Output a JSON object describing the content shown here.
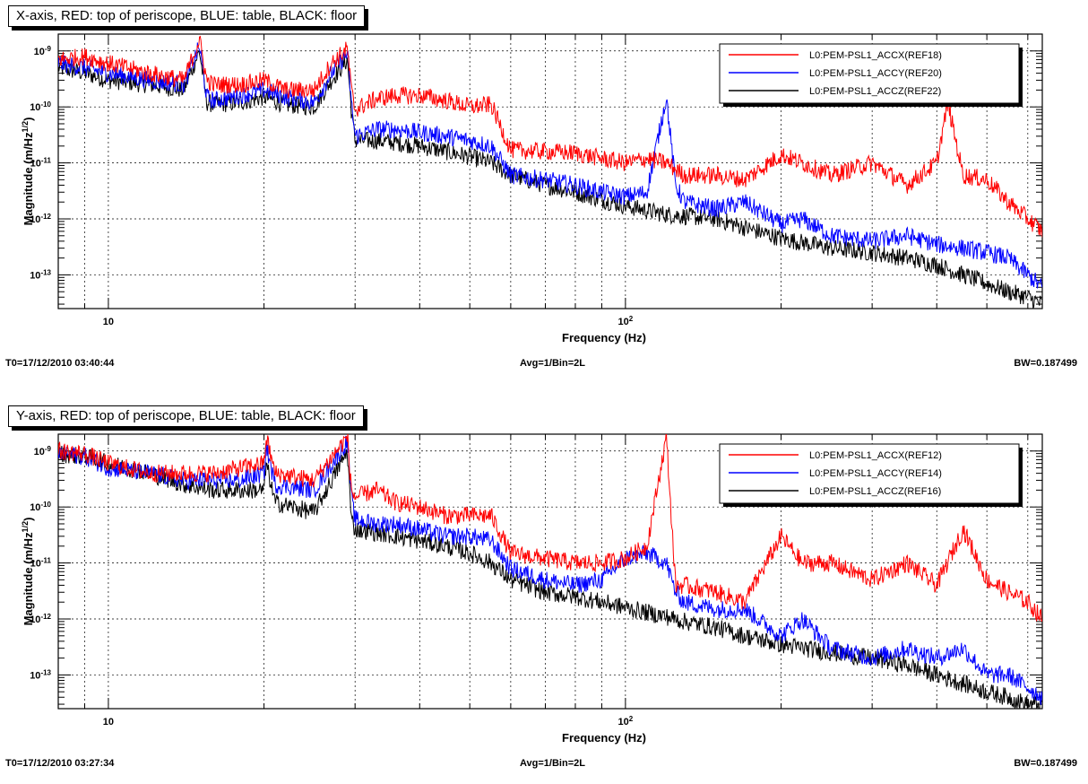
{
  "chart_data": [
    {
      "type": "line",
      "title": "X-axis, RED: top of periscope, BLUE: table, BLACK: floor",
      "xlabel": "Frequency (Hz)",
      "ylabel": "Magnitude (m/Hz^(1/2))",
      "xscale": "log",
      "yscale": "log",
      "xlim": [
        8,
        640
      ],
      "ylim": [
        2.5e-14,
        2e-09
      ],
      "grid": true,
      "legend_position": "top-right",
      "xticks": [
        {
          "value": 10,
          "label": "10"
        },
        {
          "value": 100,
          "label": "10^2"
        }
      ],
      "yticks": [
        {
          "value": 1e-09,
          "label": "10^-9"
        },
        {
          "value": 1e-10,
          "label": "10^-10"
        },
        {
          "value": 1e-11,
          "label": "10^-11"
        },
        {
          "value": 1e-12,
          "label": "10^-12"
        },
        {
          "value": 1e-13,
          "label": "10^-13"
        }
      ],
      "footer": {
        "left": "T0=17/12/2010 03:40:44",
        "center": "Avg=1/Bin=2L",
        "right": "BW=0.187499"
      },
      "series": [
        {
          "name": "L0:PEM-PSL1_ACCX(REF18)",
          "color": "#ff0000",
          "x": [
            8,
            9,
            10,
            12,
            14,
            15,
            15.5,
            16,
            18,
            20,
            22,
            25,
            27,
            29,
            29.5,
            30,
            33,
            36,
            40,
            45,
            50,
            55,
            60,
            70,
            80,
            90,
            100,
            110,
            120,
            130,
            150,
            170,
            200,
            220,
            250,
            300,
            350,
            400,
            420,
            450,
            500,
            550,
            600,
            640
          ],
          "y": [
            7e-10,
            8e-10,
            6e-10,
            4e-10,
            3e-10,
            1.6e-09,
            3e-10,
            2.5e-10,
            2.5e-10,
            3e-10,
            2e-10,
            2e-10,
            6e-10,
            1.1e-09,
            2e-10,
            9e-11,
            1.4e-10,
            1.6e-10,
            1.6e-10,
            1.3e-10,
            1e-10,
            1.1e-10,
            1.7e-11,
            1.6e-11,
            1.5e-11,
            1.2e-11,
            1e-11,
            1.2e-11,
            1e-11,
            6e-12,
            6e-12,
            5e-12,
            1.4e-11,
            1e-11,
            6e-12,
            1e-11,
            4e-12,
            1e-11,
            1.2e-10,
            6e-12,
            5e-12,
            2e-12,
            1e-12,
            6e-13
          ]
        },
        {
          "name": "L0:PEM-PSL1_ACCY(REF20)",
          "color": "#0000ff",
          "x": [
            8,
            9,
            10,
            12,
            14,
            15,
            15.5,
            16,
            18,
            20,
            22,
            25,
            27,
            29,
            29.5,
            30,
            33,
            36,
            40,
            45,
            50,
            55,
            60,
            70,
            80,
            90,
            100,
            110,
            120,
            125,
            130,
            150,
            170,
            200,
            220,
            250,
            300,
            350,
            400,
            450,
            500,
            550,
            600,
            640
          ],
          "y": [
            6e-10,
            5e-10,
            4e-10,
            3e-10,
            2.5e-10,
            1.2e-09,
            1.5e-10,
            1.3e-10,
            1.6e-10,
            2e-10,
            1.5e-10,
            1.2e-10,
            4e-10,
            9e-10,
            1.2e-10,
            3e-11,
            4e-11,
            4e-11,
            3.5e-11,
            3e-11,
            2.5e-11,
            2e-11,
            6e-12,
            5e-12,
            4e-12,
            3e-12,
            2.5e-12,
            3e-12,
            1.5e-10,
            4e-12,
            2e-12,
            1.5e-12,
            2e-12,
            8e-13,
            1e-12,
            5e-13,
            4e-13,
            5e-13,
            3.5e-13,
            3e-13,
            2.5e-13,
            2e-13,
            1e-13,
            6e-14
          ]
        },
        {
          "name": "L0:PEM-PSL1_ACCZ(REF22)",
          "color": "#000000",
          "x": [
            8,
            9,
            10,
            12,
            14,
            15,
            15.5,
            16,
            18,
            20,
            22,
            25,
            27,
            29,
            29.5,
            30,
            33,
            36,
            40,
            45,
            50,
            55,
            60,
            70,
            80,
            90,
            100,
            120,
            150,
            170,
            200,
            250,
            300,
            350,
            400,
            450,
            500,
            550,
            600,
            640
          ],
          "y": [
            5e-10,
            4e-10,
            3e-10,
            2.5e-10,
            2e-10,
            1e-09,
            1.2e-10,
            1.1e-10,
            1.2e-10,
            1.5e-10,
            1.1e-10,
            1e-10,
            3e-10,
            7e-10,
            9e-11,
            2.5e-11,
            2.5e-11,
            2.3e-11,
            2e-11,
            1.6e-11,
            1.3e-11,
            1e-11,
            6e-12,
            4e-12,
            3e-12,
            2.2e-12,
            1.7e-12,
            1.2e-12,
            1e-12,
            7e-13,
            4.5e-13,
            3e-13,
            2.5e-13,
            2e-13,
            1.5e-13,
            1e-13,
            7e-14,
            5e-14,
            4e-14,
            3e-14
          ]
        }
      ]
    },
    {
      "type": "line",
      "title": "Y-axis, RED: top of periscope, BLUE: table, BLACK: floor",
      "xlabel": "Frequency (Hz)",
      "ylabel": "Magnitude (m/Hz^(1/2))",
      "xscale": "log",
      "yscale": "log",
      "xlim": [
        8,
        640
      ],
      "ylim": [
        2.5e-14,
        2e-09
      ],
      "grid": true,
      "legend_position": "top-right",
      "xticks": [
        {
          "value": 10,
          "label": "10"
        },
        {
          "value": 100,
          "label": "10^2"
        }
      ],
      "yticks": [
        {
          "value": 1e-09,
          "label": "10^-9"
        },
        {
          "value": 1e-10,
          "label": "10^-10"
        },
        {
          "value": 1e-11,
          "label": "10^-11"
        },
        {
          "value": 1e-12,
          "label": "10^-12"
        },
        {
          "value": 1e-13,
          "label": "10^-13"
        }
      ],
      "footer": {
        "left": "T0=17/12/2010 03:27:34",
        "center": "Avg=1/Bin=2L",
        "right": "BW=0.187499"
      },
      "series": [
        {
          "name": "L0:PEM-PSL1_ACCX(REF12)",
          "color": "#ff0000",
          "x": [
            8,
            9,
            10,
            12,
            14,
            16,
            18,
            20,
            20.2,
            21,
            25,
            29,
            29.5,
            30,
            33,
            36,
            40,
            45,
            50,
            55,
            60,
            70,
            80,
            90,
            100,
            110,
            120,
            125,
            130,
            150,
            170,
            200,
            220,
            250,
            300,
            350,
            400,
            450,
            500,
            550,
            600,
            640
          ],
          "y": [
            1e-09,
            9e-10,
            6e-10,
            4e-10,
            4e-10,
            4e-10,
            5e-10,
            6e-10,
            1.8e-09,
            4e-10,
            3e-10,
            1.8e-09,
            2e-10,
            1.5e-10,
            2e-10,
            1.2e-10,
            1e-10,
            7e-11,
            7e-11,
            7e-11,
            1.5e-11,
            1.2e-11,
            1e-11,
            1e-11,
            1.2e-11,
            2e-11,
            1.8e-09,
            4e-12,
            4e-12,
            3e-12,
            2e-12,
            3e-11,
            1e-11,
            1e-11,
            5e-12,
            1e-11,
            4e-12,
            4e-11,
            5e-12,
            3e-12,
            2e-12,
            1e-12
          ]
        },
        {
          "name": "L0:PEM-PSL1_ACCY(REF14)",
          "color": "#0000ff",
          "x": [
            8,
            9,
            10,
            12,
            14,
            16,
            18,
            20,
            20.2,
            21,
            25,
            29,
            29.5,
            30,
            33,
            36,
            40,
            45,
            50,
            55,
            60,
            70,
            80,
            90,
            100,
            110,
            120,
            125,
            130,
            150,
            170,
            200,
            220,
            250,
            300,
            350,
            400,
            450,
            500,
            550,
            600,
            640
          ],
          "y": [
            9e-10,
            8e-10,
            5e-10,
            4e-10,
            3e-10,
            3e-10,
            3e-10,
            4e-10,
            1.2e-09,
            2.5e-10,
            2e-10,
            1.5e-09,
            1.5e-10,
            6e-11,
            5e-11,
            5e-11,
            4e-11,
            3e-11,
            3e-11,
            2.5e-11,
            8e-12,
            5e-12,
            4e-12,
            5e-12,
            1.2e-11,
            1.5e-11,
            1e-11,
            3e-12,
            2e-12,
            1.5e-12,
            1.5e-12,
            5e-13,
            1e-12,
            3e-13,
            2e-13,
            3e-13,
            2e-13,
            3e-13,
            1e-13,
            1e-13,
            6e-14,
            4e-14
          ]
        },
        {
          "name": "L0:PEM-PSL1_ACCZ(REF16)",
          "color": "#000000",
          "x": [
            8,
            9,
            10,
            12,
            14,
            16,
            18,
            20,
            20.2,
            21,
            25,
            29,
            29.5,
            30,
            33,
            36,
            40,
            45,
            50,
            55,
            60,
            70,
            80,
            90,
            100,
            110,
            120,
            130,
            150,
            170,
            200,
            250,
            300,
            350,
            400,
            450,
            500,
            550,
            600,
            640
          ],
          "y": [
            9e-10,
            8e-10,
            6e-10,
            4e-10,
            2.5e-10,
            2e-10,
            2e-10,
            2e-10,
            6e-10,
            1.2e-10,
            8e-11,
            1e-09,
            6e-11,
            4e-11,
            3.5e-11,
            3e-11,
            2.5e-11,
            2e-11,
            1.5e-11,
            1e-11,
            5e-12,
            3e-12,
            2.5e-12,
            2e-12,
            1.6e-12,
            1.3e-12,
            1.1e-12,
            9e-13,
            7e-13,
            5e-13,
            3.5e-13,
            2.5e-13,
            2e-13,
            1.5e-13,
            1e-13,
            7e-14,
            5e-14,
            4e-14,
            3e-14,
            3e-14
          ]
        }
      ]
    }
  ]
}
